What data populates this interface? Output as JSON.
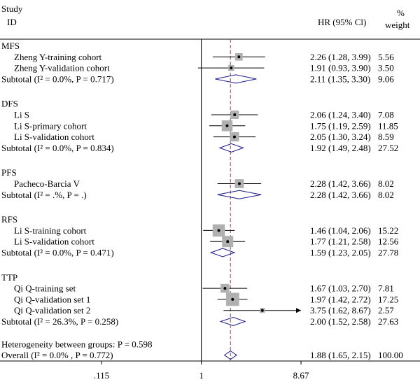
{
  "header": {
    "study_line1": "Study",
    "study_line2": "ID",
    "hr_label": "HR (95% Cl)",
    "weight_line1": "%",
    "weight_line2": "weight"
  },
  "chart_data": {
    "type": "forest",
    "x_scale": "log",
    "null_value": 1,
    "overall_estimate": 1.88,
    "xlim": [
      0.115,
      8.67
    ],
    "xticks": [
      {
        "value": 0.115,
        "label": ".115"
      },
      {
        "value": 1,
        "label": "1"
      },
      {
        "value": 8.67,
        "label": "8.67"
      }
    ],
    "colors": {
      "point_box": "#b0b0b0",
      "diamond": "#1a1a8c",
      "reference_line": "#b03050",
      "line": "#000000"
    },
    "groups": [
      {
        "name": "MFS",
        "studies": [
          {
            "label": "Zheng Y-training cohort",
            "hr": 2.26,
            "lo": 1.28,
            "hi": 3.99,
            "hr_text": "2.26 (1.28, 3.99)",
            "weight": "5.56",
            "w": 5.56
          },
          {
            "label": "Zheng Y-validation cohort",
            "hr": 1.91,
            "lo": 0.93,
            "hi": 3.9,
            "hr_text": "1.91 (0.93, 3.90)",
            "weight": "3.50",
            "w": 3.5
          }
        ],
        "subtotal": {
          "text": "Subtotal (I² = 0.0%, P = 0.717)",
          "hr": 2.11,
          "lo": 1.35,
          "hi": 3.3,
          "hr_text": "2.11 (1.35, 3.30)",
          "weight": "9.06"
        }
      },
      {
        "name": "DFS",
        "studies": [
          {
            "label": "Li S",
            "hr": 2.06,
            "lo": 1.24,
            "hi": 3.4,
            "hr_text": "2.06 (1.24, 3.40)",
            "weight": "7.08",
            "w": 7.08
          },
          {
            "label": "Li S-primary cohort",
            "hr": 1.75,
            "lo": 1.19,
            "hi": 2.59,
            "hr_text": "1.75 (1.19, 2.59)",
            "weight": "11.85",
            "w": 11.85
          },
          {
            "label": "Li S-validation cohort",
            "hr": 2.05,
            "lo": 1.3,
            "hi": 3.24,
            "hr_text": "2.05 (1.30, 3.24)",
            "weight": "8.59",
            "w": 8.59
          }
        ],
        "subtotal": {
          "text": "Subtotal (I² = 0.0%, P = 0.834)",
          "hr": 1.92,
          "lo": 1.49,
          "hi": 2.48,
          "hr_text": "1.92 (1.49, 2.48)",
          "weight": "27.52"
        }
      },
      {
        "name": "PFS",
        "studies": [
          {
            "label": "Pacheco-Barcia V",
            "hr": 2.28,
            "lo": 1.42,
            "hi": 3.66,
            "hr_text": "2.28 (1.42, 3.66)",
            "weight": "8.02",
            "w": 8.02
          }
        ],
        "subtotal": {
          "text": "Subtotal (I² = .%, P = .)",
          "hr": 2.28,
          "lo": 1.42,
          "hi": 3.66,
          "hr_text": "2.28 (1.42, 3.66)",
          "weight": "8.02"
        }
      },
      {
        "name": "RFS",
        "studies": [
          {
            "label": "Li S-training cohort",
            "hr": 1.46,
            "lo": 1.04,
            "hi": 2.06,
            "hr_text": "1.46 (1.04, 2.06)",
            "weight": "15.22",
            "w": 15.22
          },
          {
            "label": "Li S-validation cohort",
            "hr": 1.77,
            "lo": 1.21,
            "hi": 2.58,
            "hr_text": "1.77 (1.21, 2.58)",
            "weight": "12.56",
            "w": 12.56
          }
        ],
        "subtotal": {
          "text": "Subtotal (I² = 0.0%, P = 0.471)",
          "hr": 1.59,
          "lo": 1.23,
          "hi": 2.05,
          "hr_text": "1.59 (1.23, 2.05)",
          "weight": "27.78"
        }
      },
      {
        "name": "TTP",
        "studies": [
          {
            "label": "Qi Q-training set",
            "hr": 1.67,
            "lo": 1.03,
            "hi": 2.7,
            "hr_text": "1.67 (1.03, 2.70)",
            "weight": "7.81",
            "w": 7.81
          },
          {
            "label": "Qi Q-validation set 1",
            "hr": 1.97,
            "lo": 1.42,
            "hi": 2.72,
            "hr_text": "1.97 (1.42, 2.72)",
            "weight": "17.25",
            "w": 17.25
          },
          {
            "label": "Qi Q-validation set 2",
            "hr": 3.75,
            "lo": 1.62,
            "hi": 8.67,
            "hr_text": "3.75 (1.62, 8.67)",
            "weight": "2.57",
            "w": 2.57,
            "arrow": true
          }
        ],
        "subtotal": {
          "text": "Subtotal (I² = 26.3%, P = 0.258)",
          "hr": 2.0,
          "lo": 1.52,
          "hi": 2.58,
          "hr_text": "2.00 (1.52, 2.58)",
          "weight": "27.63"
        }
      }
    ],
    "heterogeneity": "Heterogeneity between groups: P = 0.598",
    "overall": {
      "text": "Overall (I² = 0.0% , P = 0.772)",
      "hr": 1.88,
      "lo": 1.65,
      "hi": 2.15,
      "hr_text": "1.88 (1.65, 2.15)",
      "weight": "100.00"
    }
  }
}
